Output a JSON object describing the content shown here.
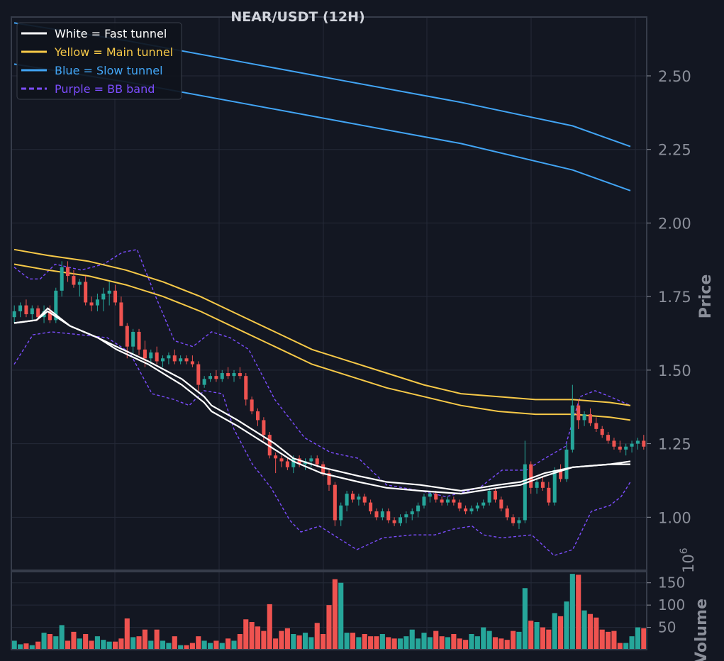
{
  "chart_data": {
    "type": "candlestick",
    "title": "NEAR/USDT (12H)",
    "ylabel": "Price",
    "volume_label": "Volume",
    "volume_multiplier": "10",
    "volume_multiplier_exponent": "6",
    "price_axis": {
      "ylim": [
        0.82,
        2.7
      ],
      "ticks": [
        "1.00",
        "1.25",
        "1.50",
        "1.75",
        "2.00",
        "2.25",
        "2.50"
      ]
    },
    "volume_axis": {
      "ylim": [
        0,
        175
      ],
      "ticks": [
        "50",
        "100",
        "150"
      ]
    },
    "grid": true,
    "legend_position": "top-left",
    "legend": [
      {
        "label": "White = Fast tunnel",
        "color": "#ffffff",
        "style": "solid"
      },
      {
        "label": "Yellow = Main tunnel",
        "color": "#f7c948",
        "style": "solid"
      },
      {
        "label": "Blue = Slow tunnel",
        "color": "#42a5f5",
        "style": "solid"
      },
      {
        "label": "Purple = BB band",
        "color": "#7c4dff",
        "style": "dashed"
      }
    ],
    "colors": {
      "up": "#26a69a",
      "down": "#ef5350",
      "background": "#131722",
      "grid": "#242a38",
      "axis_text": "#8b8f9a"
    },
    "candles": [
      [
        1.68,
        1.72,
        1.66,
        1.7,
        20
      ],
      [
        1.7,
        1.73,
        1.68,
        1.72,
        12
      ],
      [
        1.72,
        1.74,
        1.68,
        1.69,
        14
      ],
      [
        1.69,
        1.72,
        1.67,
        1.71,
        10
      ],
      [
        1.71,
        1.72,
        1.67,
        1.68,
        18
      ],
      [
        1.68,
        1.72,
        1.66,
        1.7,
        38
      ],
      [
        1.7,
        1.72,
        1.66,
        1.67,
        35
      ],
      [
        1.67,
        1.78,
        1.66,
        1.77,
        30
      ],
      [
        1.77,
        1.87,
        1.75,
        1.85,
        55
      ],
      [
        1.85,
        1.87,
        1.8,
        1.82,
        20
      ],
      [
        1.82,
        1.84,
        1.78,
        1.79,
        40
      ],
      [
        1.79,
        1.81,
        1.75,
        1.8,
        25
      ],
      [
        1.8,
        1.82,
        1.72,
        1.73,
        35
      ],
      [
        1.73,
        1.75,
        1.7,
        1.72,
        20
      ],
      [
        1.72,
        1.76,
        1.7,
        1.74,
        30
      ],
      [
        1.74,
        1.78,
        1.7,
        1.76,
        22
      ],
      [
        1.76,
        1.8,
        1.72,
        1.77,
        18
      ],
      [
        1.77,
        1.79,
        1.72,
        1.73,
        18
      ],
      [
        1.73,
        1.75,
        1.65,
        1.65,
        25
      ],
      [
        1.65,
        1.66,
        1.54,
        1.58,
        70
      ],
      [
        1.58,
        1.64,
        1.55,
        1.63,
        28
      ],
      [
        1.63,
        1.64,
        1.55,
        1.57,
        30
      ],
      [
        1.57,
        1.6,
        1.51,
        1.54,
        45
      ],
      [
        1.54,
        1.57,
        1.52,
        1.56,
        20
      ],
      [
        1.56,
        1.58,
        1.52,
        1.53,
        45
      ],
      [
        1.53,
        1.55,
        1.51,
        1.54,
        20
      ],
      [
        1.54,
        1.56,
        1.52,
        1.55,
        15
      ],
      [
        1.55,
        1.57,
        1.52,
        1.53,
        30
      ],
      [
        1.53,
        1.55,
        1.52,
        1.54,
        10
      ],
      [
        1.54,
        1.55,
        1.52,
        1.53,
        10
      ],
      [
        1.53,
        1.55,
        1.51,
        1.52,
        15
      ],
      [
        1.52,
        1.53,
        1.43,
        1.45,
        30
      ],
      [
        1.45,
        1.48,
        1.44,
        1.47,
        20
      ],
      [
        1.47,
        1.49,
        1.46,
        1.48,
        15
      ],
      [
        1.48,
        1.5,
        1.46,
        1.47,
        20
      ],
      [
        1.47,
        1.5,
        1.46,
        1.49,
        15
      ],
      [
        1.49,
        1.51,
        1.47,
        1.48,
        25
      ],
      [
        1.48,
        1.5,
        1.46,
        1.49,
        20
      ],
      [
        1.49,
        1.51,
        1.47,
        1.48,
        35
      ],
      [
        1.48,
        1.49,
        1.38,
        1.4,
        68
      ],
      [
        1.4,
        1.41,
        1.35,
        1.36,
        62
      ],
      [
        1.36,
        1.37,
        1.31,
        1.33,
        52
      ],
      [
        1.33,
        1.34,
        1.26,
        1.28,
        42
      ],
      [
        1.28,
        1.29,
        1.2,
        1.21,
        102
      ],
      [
        1.21,
        1.22,
        1.15,
        1.2,
        25
      ],
      [
        1.2,
        1.21,
        1.17,
        1.19,
        42
      ],
      [
        1.19,
        1.2,
        1.16,
        1.17,
        48
      ],
      [
        1.17,
        1.21,
        1.15,
        1.2,
        35
      ],
      [
        1.2,
        1.21,
        1.17,
        1.18,
        32
      ],
      [
        1.18,
        1.2,
        1.16,
        1.19,
        38
      ],
      [
        1.19,
        1.21,
        1.17,
        1.2,
        28
      ],
      [
        1.2,
        1.21,
        1.17,
        1.18,
        60
      ],
      [
        1.18,
        1.19,
        1.14,
        1.15,
        35
      ],
      [
        1.15,
        1.16,
        1.09,
        1.11,
        100
      ],
      [
        1.11,
        1.12,
        0.97,
        0.99,
        158
      ],
      [
        0.99,
        1.05,
        0.97,
        1.04,
        150
      ],
      [
        1.04,
        1.09,
        1.02,
        1.08,
        38
      ],
      [
        1.08,
        1.09,
        1.05,
        1.06,
        38
      ],
      [
        1.06,
        1.08,
        1.04,
        1.07,
        28
      ],
      [
        1.07,
        1.08,
        1.04,
        1.05,
        35
      ],
      [
        1.05,
        1.06,
        1.01,
        1.02,
        30
      ],
      [
        1.02,
        1.03,
        0.99,
        1.0,
        30
      ],
      [
        1.0,
        1.03,
        0.99,
        1.02,
        35
      ],
      [
        1.02,
        1.03,
        0.98,
        0.99,
        28
      ],
      [
        0.99,
        1.0,
        0.97,
        0.98,
        25
      ],
      [
        0.98,
        1.01,
        0.97,
        1.0,
        25
      ],
      [
        1.0,
        1.02,
        0.98,
        1.01,
        30
      ],
      [
        1.01,
        1.03,
        0.99,
        1.02,
        45
      ],
      [
        1.02,
        1.05,
        1.0,
        1.04,
        25
      ],
      [
        1.04,
        1.08,
        1.03,
        1.07,
        38
      ],
      [
        1.07,
        1.09,
        1.05,
        1.08,
        28
      ],
      [
        1.08,
        1.09,
        1.05,
        1.06,
        42
      ],
      [
        1.06,
        1.07,
        1.04,
        1.05,
        30
      ],
      [
        1.05,
        1.07,
        1.04,
        1.06,
        28
      ],
      [
        1.06,
        1.07,
        1.04,
        1.05,
        35
      ],
      [
        1.05,
        1.06,
        1.02,
        1.03,
        25
      ],
      [
        1.03,
        1.04,
        1.01,
        1.02,
        22
      ],
      [
        1.02,
        1.04,
        1.01,
        1.03,
        35
      ],
      [
        1.03,
        1.05,
        1.02,
        1.04,
        30
      ],
      [
        1.04,
        1.06,
        1.03,
        1.05,
        50
      ],
      [
        1.05,
        1.1,
        1.04,
        1.09,
        42
      ],
      [
        1.09,
        1.1,
        1.05,
        1.06,
        28
      ],
      [
        1.06,
        1.07,
        1.02,
        1.03,
        25
      ],
      [
        1.03,
        1.04,
        0.99,
        1.0,
        22
      ],
      [
        1.0,
        1.01,
        0.97,
        0.98,
        42
      ],
      [
        0.98,
        1.0,
        0.96,
        0.99,
        40
      ],
      [
        0.99,
        1.26,
        0.98,
        1.18,
        138
      ],
      [
        1.18,
        1.19,
        1.08,
        1.1,
        65
      ],
      [
        1.1,
        1.13,
        1.08,
        1.12,
        62
      ],
      [
        1.12,
        1.14,
        1.09,
        1.1,
        50
      ],
      [
        1.1,
        1.12,
        1.04,
        1.05,
        45
      ],
      [
        1.05,
        1.17,
        1.04,
        1.16,
        82
      ],
      [
        1.16,
        1.18,
        1.12,
        1.13,
        75
      ],
      [
        1.13,
        1.25,
        1.12,
        1.23,
        108
      ],
      [
        1.23,
        1.45,
        1.22,
        1.38,
        170
      ],
      [
        1.38,
        1.4,
        1.3,
        1.33,
        168
      ],
      [
        1.33,
        1.36,
        1.31,
        1.35,
        88
      ],
      [
        1.35,
        1.37,
        1.31,
        1.32,
        80
      ],
      [
        1.32,
        1.34,
        1.29,
        1.3,
        72
      ],
      [
        1.3,
        1.31,
        1.27,
        1.28,
        45
      ],
      [
        1.28,
        1.29,
        1.25,
        1.26,
        40
      ],
      [
        1.26,
        1.27,
        1.23,
        1.24,
        42
      ],
      [
        1.24,
        1.26,
        1.22,
        1.23,
        15
      ],
      [
        1.23,
        1.25,
        1.21,
        1.24,
        15
      ],
      [
        1.24,
        1.26,
        1.22,
        1.25,
        30
      ],
      [
        1.25,
        1.27,
        1.23,
        1.26,
        50
      ],
      [
        1.26,
        1.28,
        1.23,
        1.24,
        48
      ]
    ],
    "fast_tunnel_upper": [
      [
        0,
        1.66
      ],
      [
        12,
        1.67
      ],
      [
        18,
        1.71
      ],
      [
        30,
        1.65
      ],
      [
        45,
        1.61
      ],
      [
        55,
        1.58
      ],
      [
        72,
        1.53
      ],
      [
        90,
        1.47
      ],
      [
        102,
        1.41
      ],
      [
        106,
        1.38
      ],
      [
        120,
        1.33
      ],
      [
        140,
        1.25
      ],
      [
        150,
        1.2
      ],
      [
        165,
        1.17
      ],
      [
        185,
        1.14
      ],
      [
        200,
        1.12
      ],
      [
        218,
        1.11
      ],
      [
        240,
        1.09
      ],
      [
        260,
        1.11
      ],
      [
        272,
        1.12
      ],
      [
        285,
        1.15
      ],
      [
        300,
        1.17
      ],
      [
        320,
        1.18
      ],
      [
        331,
        1.19
      ]
    ],
    "fast_tunnel_lower": [
      [
        0,
        1.66
      ],
      [
        12,
        1.67
      ],
      [
        18,
        1.7
      ],
      [
        30,
        1.65
      ],
      [
        45,
        1.61
      ],
      [
        55,
        1.57
      ],
      [
        72,
        1.52
      ],
      [
        90,
        1.45
      ],
      [
        102,
        1.39
      ],
      [
        106,
        1.36
      ],
      [
        120,
        1.31
      ],
      [
        140,
        1.23
      ],
      [
        150,
        1.19
      ],
      [
        165,
        1.15
      ],
      [
        185,
        1.12
      ],
      [
        200,
        1.1
      ],
      [
        218,
        1.09
      ],
      [
        240,
        1.08
      ],
      [
        260,
        1.1
      ],
      [
        272,
        1.11
      ],
      [
        285,
        1.14
      ],
      [
        300,
        1.17
      ],
      [
        320,
        1.18
      ],
      [
        331,
        1.18
      ]
    ],
    "main_tunnel_upper": [
      [
        0,
        1.91
      ],
      [
        18,
        1.89
      ],
      [
        40,
        1.87
      ],
      [
        60,
        1.84
      ],
      [
        80,
        1.8
      ],
      [
        100,
        1.75
      ],
      [
        120,
        1.69
      ],
      [
        140,
        1.63
      ],
      [
        160,
        1.57
      ],
      [
        180,
        1.53
      ],
      [
        200,
        1.49
      ],
      [
        220,
        1.45
      ],
      [
        240,
        1.42
      ],
      [
        260,
        1.41
      ],
      [
        280,
        1.4
      ],
      [
        300,
        1.4
      ],
      [
        320,
        1.39
      ],
      [
        331,
        1.38
      ]
    ],
    "main_tunnel_lower": [
      [
        0,
        1.86
      ],
      [
        18,
        1.84
      ],
      [
        40,
        1.82
      ],
      [
        60,
        1.79
      ],
      [
        80,
        1.75
      ],
      [
        100,
        1.7
      ],
      [
        120,
        1.64
      ],
      [
        140,
        1.58
      ],
      [
        160,
        1.52
      ],
      [
        180,
        1.48
      ],
      [
        200,
        1.44
      ],
      [
        220,
        1.41
      ],
      [
        240,
        1.38
      ],
      [
        260,
        1.36
      ],
      [
        280,
        1.35
      ],
      [
        300,
        1.35
      ],
      [
        320,
        1.34
      ],
      [
        331,
        1.33
      ]
    ],
    "slow_tunnel_upper": [
      [
        0,
        2.68
      ],
      [
        60,
        2.62
      ],
      [
        120,
        2.55
      ],
      [
        180,
        2.48
      ],
      [
        240,
        2.41
      ],
      [
        300,
        2.33
      ],
      [
        331,
        2.26
      ]
    ],
    "slow_tunnel_lower": [
      [
        0,
        2.54
      ],
      [
        60,
        2.48
      ],
      [
        120,
        2.41
      ],
      [
        180,
        2.34
      ],
      [
        240,
        2.27
      ],
      [
        300,
        2.18
      ],
      [
        331,
        2.11
      ]
    ],
    "bb_upper": [
      [
        0,
        1.85
      ],
      [
        8,
        1.81
      ],
      [
        14,
        1.81
      ],
      [
        22,
        1.86
      ],
      [
        36,
        1.84
      ],
      [
        48,
        1.86
      ],
      [
        58,
        1.9
      ],
      [
        66,
        1.91
      ],
      [
        76,
        1.75
      ],
      [
        86,
        1.6
      ],
      [
        96,
        1.58
      ],
      [
        106,
        1.63
      ],
      [
        116,
        1.61
      ],
      [
        126,
        1.57
      ],
      [
        140,
        1.4
      ],
      [
        156,
        1.27
      ],
      [
        170,
        1.22
      ],
      [
        185,
        1.2
      ],
      [
        200,
        1.11
      ],
      [
        218,
        1.09
      ],
      [
        232,
        1.07
      ],
      [
        250,
        1.1
      ],
      [
        262,
        1.16
      ],
      [
        275,
        1.16
      ],
      [
        285,
        1.2
      ],
      [
        296,
        1.24
      ],
      [
        304,
        1.41
      ],
      [
        312,
        1.43
      ],
      [
        320,
        1.41
      ],
      [
        331,
        1.38
      ]
    ],
    "bb_lower": [
      [
        0,
        1.52
      ],
      [
        10,
        1.62
      ],
      [
        20,
        1.63
      ],
      [
        36,
        1.62
      ],
      [
        50,
        1.61
      ],
      [
        62,
        1.56
      ],
      [
        74,
        1.42
      ],
      [
        86,
        1.4
      ],
      [
        94,
        1.38
      ],
      [
        102,
        1.43
      ],
      [
        112,
        1.42
      ],
      [
        118,
        1.3
      ],
      [
        128,
        1.18
      ],
      [
        138,
        1.1
      ],
      [
        148,
        0.99
      ],
      [
        154,
        0.95
      ],
      [
        164,
        0.97
      ],
      [
        174,
        0.93
      ],
      [
        184,
        0.89
      ],
      [
        198,
        0.93
      ],
      [
        214,
        0.94
      ],
      [
        226,
        0.94
      ],
      [
        236,
        0.96
      ],
      [
        246,
        0.97
      ],
      [
        252,
        0.94
      ],
      [
        262,
        0.93
      ],
      [
        278,
        0.94
      ],
      [
        290,
        0.87
      ],
      [
        300,
        0.89
      ],
      [
        310,
        1.02
      ],
      [
        320,
        1.04
      ],
      [
        326,
        1.07
      ],
      [
        331,
        1.12
      ]
    ]
  }
}
